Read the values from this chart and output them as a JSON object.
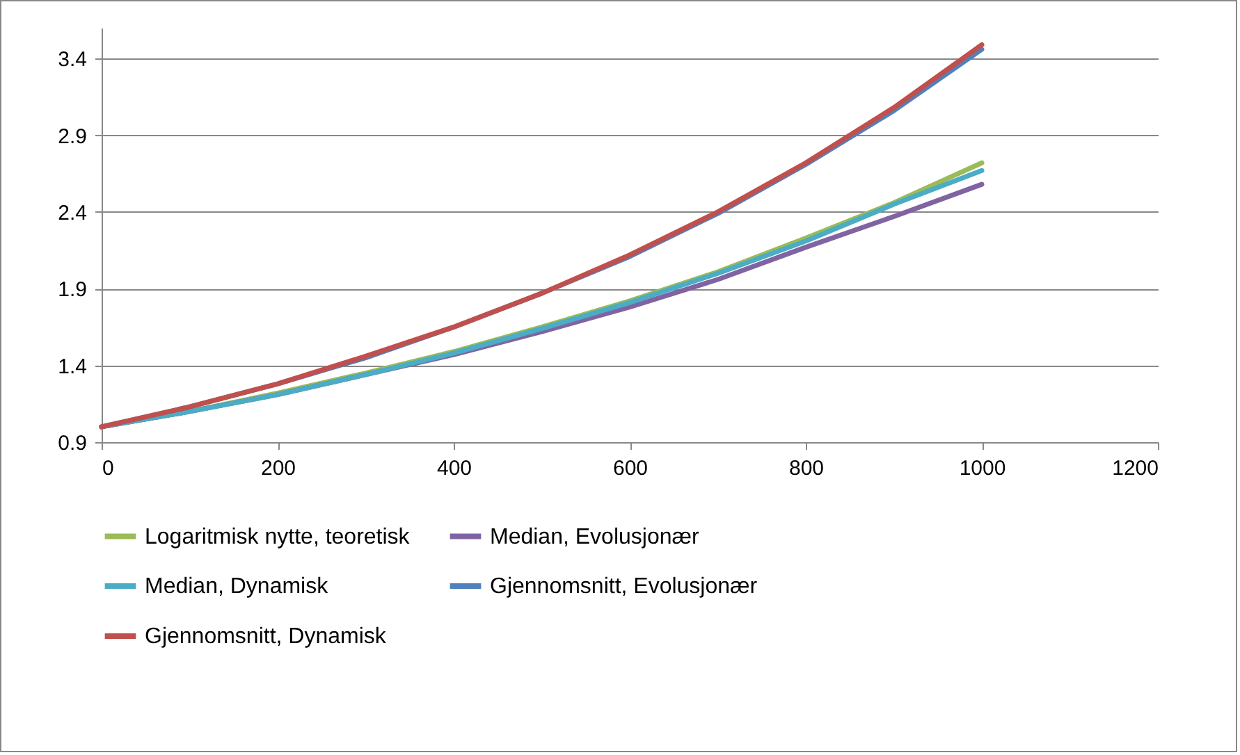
{
  "chart_data": {
    "type": "line",
    "x": [
      0,
      100,
      200,
      300,
      400,
      500,
      600,
      700,
      800,
      900,
      1000
    ],
    "series": [
      {
        "name": "Logaritmisk nytte, teoretisk",
        "color": "#9bbb59",
        "values": [
          1.0,
          1.1,
          1.22,
          1.35,
          1.49,
          1.65,
          1.82,
          2.01,
          2.23,
          2.46,
          2.72
        ]
      },
      {
        "name": "Median, Evolusjonær",
        "color": "#8064a2",
        "values": [
          1.0,
          1.1,
          1.21,
          1.34,
          1.47,
          1.62,
          1.78,
          1.96,
          2.17,
          2.37,
          2.58
        ]
      },
      {
        "name": "Median, Dynamisk",
        "color": "#4bacc6",
        "values": [
          1.0,
          1.1,
          1.21,
          1.34,
          1.48,
          1.64,
          1.81,
          2.0,
          2.21,
          2.45,
          2.67
        ]
      },
      {
        "name": "Gjennomsnitt, Evolusjonær",
        "color": "#4f81bd",
        "values": [
          1.0,
          1.13,
          1.28,
          1.45,
          1.65,
          1.87,
          2.11,
          2.39,
          2.71,
          3.06,
          3.46
        ]
      },
      {
        "name": "Gjennomsnitt, Dynamisk",
        "color": "#c0504d",
        "values": [
          1.0,
          1.13,
          1.28,
          1.46,
          1.65,
          1.87,
          2.12,
          2.4,
          2.72,
          3.08,
          3.49
        ]
      }
    ],
    "xlim": [
      0,
      1200
    ],
    "xticks": [
      0,
      200,
      400,
      600,
      800,
      1000,
      1200
    ],
    "ylim": [
      0.9,
      3.6
    ],
    "yticks": [
      0.9,
      1.4,
      1.9,
      2.4,
      2.9,
      3.4
    ],
    "grid": "y",
    "legend": "bottom",
    "marker": "none",
    "line_style": "solid"
  }
}
